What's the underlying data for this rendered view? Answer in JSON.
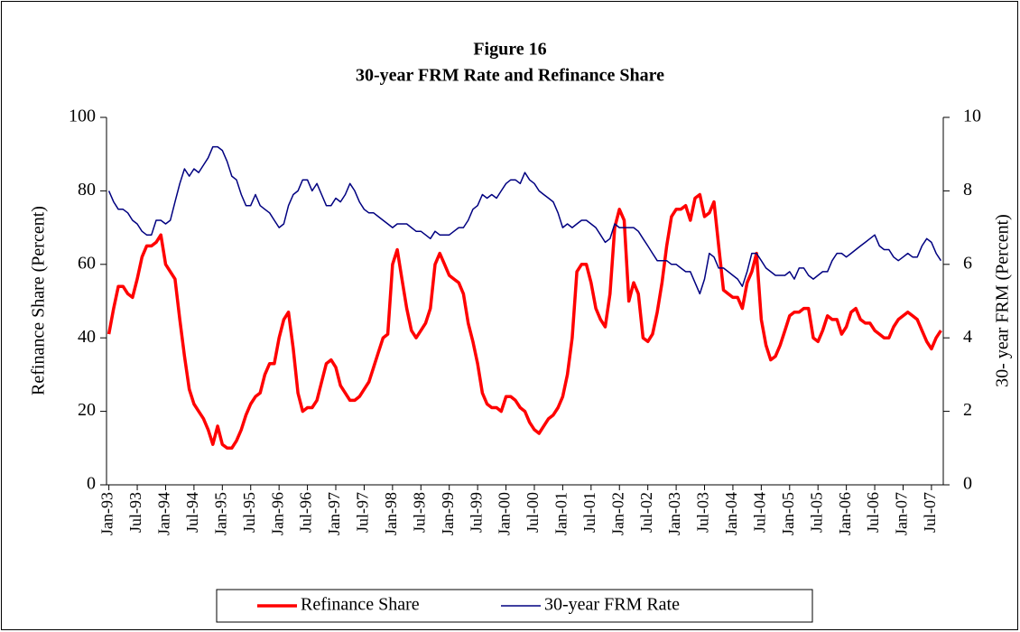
{
  "chart_data": {
    "type": "line",
    "title": "Figure 16",
    "subtitle": "30-year FRM Rate and Refinance Share",
    "y_label": "Refinance Share (Percent)",
    "y2_label": "30- year FRM (Percent)",
    "categories": [
      "Jan-93",
      null,
      null,
      null,
      null,
      null,
      "Jul-93",
      null,
      null,
      null,
      null,
      null,
      "Jan-94",
      null,
      null,
      null,
      null,
      null,
      "Jul-94",
      null,
      null,
      null,
      null,
      null,
      "Jan-95",
      null,
      null,
      null,
      null,
      null,
      "Jul-95",
      null,
      null,
      null,
      null,
      null,
      "Jan-96",
      null,
      null,
      null,
      null,
      null,
      "Jul-96",
      null,
      null,
      null,
      null,
      null,
      "Jan-97",
      null,
      null,
      null,
      null,
      null,
      "Jul-97",
      null,
      null,
      null,
      null,
      null,
      "Jan-98",
      null,
      null,
      null,
      null,
      null,
      "Jul-98",
      null,
      null,
      null,
      null,
      null,
      "Jan-99",
      null,
      null,
      null,
      null,
      null,
      "Jul-99",
      null,
      null,
      null,
      null,
      null,
      "Jan-00",
      null,
      null,
      null,
      null,
      null,
      "Jul-00",
      null,
      null,
      null,
      null,
      null,
      "Jan-01",
      null,
      null,
      null,
      null,
      null,
      "Jul-01",
      null,
      null,
      null,
      null,
      null,
      "Jan-02",
      null,
      null,
      null,
      null,
      null,
      "Jul-02",
      null,
      null,
      null,
      null,
      null,
      "Jan-03",
      null,
      null,
      null,
      null,
      null,
      "Jul-03",
      null,
      null,
      null,
      null,
      null,
      "Jan-04",
      null,
      null,
      null,
      null,
      null,
      "Jul-04",
      null,
      null,
      null,
      null,
      null,
      "Jan-05",
      null,
      null,
      null,
      null,
      null,
      "Jul-05",
      null,
      null,
      null,
      null,
      null,
      "Jan-06",
      null,
      null,
      null,
      null,
      null,
      "Jul-06",
      null,
      null,
      null,
      null,
      null,
      "Jan-07",
      null,
      null,
      null,
      null,
      null,
      "Jul-07",
      null,
      null
    ],
    "series": [
      {
        "name": "Refinance Share",
        "color": "#ff0000",
        "width": 3.5,
        "axis": "y",
        "values": [
          41,
          48,
          54,
          54,
          52,
          51,
          56,
          62,
          65,
          65,
          66,
          68,
          60,
          58,
          56,
          45,
          35,
          26,
          22,
          20,
          18,
          15,
          11,
          16,
          11,
          10,
          10,
          12,
          15,
          19,
          22,
          24,
          25,
          30,
          33,
          33,
          40,
          45,
          47,
          37,
          25,
          20,
          21,
          21,
          23,
          28,
          33,
          34,
          32,
          27,
          25,
          23,
          23,
          24,
          26,
          28,
          32,
          36,
          40,
          41,
          60,
          64,
          56,
          48,
          42,
          40,
          42,
          44,
          48,
          60,
          63,
          60,
          57,
          56,
          55,
          52,
          44,
          39,
          33,
          25,
          22,
          21,
          21,
          20,
          24,
          24,
          23,
          21,
          20,
          17,
          15,
          14,
          16,
          18,
          19,
          21,
          24,
          30,
          40,
          58,
          60,
          60,
          55,
          48,
          45,
          43,
          52,
          70,
          75,
          72,
          50,
          55,
          52,
          40,
          39,
          41,
          47,
          55,
          65,
          73,
          75,
          75,
          76,
          72,
          78,
          79,
          73,
          74,
          77,
          65,
          53,
          52,
          51,
          51,
          48,
          55,
          58,
          63,
          45,
          38,
          34,
          35,
          38,
          42,
          46,
          47,
          47,
          48,
          48,
          40,
          39,
          42,
          46,
          45,
          45,
          41,
          43,
          47,
          48,
          45,
          44,
          44,
          42,
          41,
          40,
          40,
          43,
          45,
          46,
          47,
          46,
          45,
          42,
          39,
          37,
          40,
          42
        ]
      },
      {
        "name": "30-year FRM Rate",
        "color": "#000080",
        "width": 1.5,
        "axis": "y2",
        "values": [
          8.0,
          7.7,
          7.5,
          7.5,
          7.4,
          7.2,
          7.1,
          6.9,
          6.8,
          6.8,
          7.2,
          7.2,
          7.1,
          7.2,
          7.7,
          8.2,
          8.6,
          8.4,
          8.6,
          8.5,
          8.7,
          8.9,
          9.2,
          9.2,
          9.1,
          8.8,
          8.4,
          8.3,
          7.9,
          7.6,
          7.6,
          7.9,
          7.6,
          7.5,
          7.4,
          7.2,
          7.0,
          7.1,
          7.6,
          7.9,
          8.0,
          8.3,
          8.3,
          8.0,
          8.2,
          7.9,
          7.6,
          7.6,
          7.8,
          7.7,
          7.9,
          8.2,
          8.0,
          7.7,
          7.5,
          7.4,
          7.4,
          7.3,
          7.2,
          7.1,
          7.0,
          7.1,
          7.1,
          7.1,
          7.0,
          6.9,
          6.9,
          6.8,
          6.7,
          6.9,
          6.8,
          6.8,
          6.8,
          6.9,
          7.0,
          7.0,
          7.2,
          7.5,
          7.6,
          7.9,
          7.8,
          7.9,
          7.8,
          8.0,
          8.2,
          8.3,
          8.3,
          8.2,
          8.5,
          8.3,
          8.2,
          8.0,
          7.9,
          7.8,
          7.7,
          7.4,
          7.0,
          7.1,
          7.0,
          7.1,
          7.2,
          7.2,
          7.1,
          7.0,
          6.8,
          6.6,
          6.7,
          7.1,
          7.0,
          7.0,
          7.0,
          7.0,
          6.9,
          6.7,
          6.5,
          6.3,
          6.1,
          6.1,
          6.1,
          6.0,
          6.0,
          5.9,
          5.8,
          5.8,
          5.5,
          5.2,
          5.6,
          6.3,
          6.2,
          5.9,
          5.9,
          5.8,
          5.7,
          5.6,
          5.4,
          5.8,
          6.3,
          6.3,
          6.1,
          5.9,
          5.8,
          5.7,
          5.7,
          5.7,
          5.8,
          5.6,
          5.9,
          5.9,
          5.7,
          5.6,
          5.7,
          5.8,
          5.8,
          6.1,
          6.3,
          6.3,
          6.2,
          6.3,
          6.4,
          6.5,
          6.6,
          6.7,
          6.8,
          6.5,
          6.4,
          6.4,
          6.2,
          6.1,
          6.2,
          6.3,
          6.2,
          6.2,
          6.5,
          6.7,
          6.6,
          6.3,
          6.1
        ]
      }
    ],
    "ylim": [
      0,
      100
    ],
    "yticks": [
      0,
      20,
      40,
      60,
      80,
      100
    ],
    "y2lim": [
      0,
      10
    ],
    "y2ticks": [
      0,
      2,
      4,
      6,
      8,
      10
    ],
    "legend": "bottom"
  }
}
